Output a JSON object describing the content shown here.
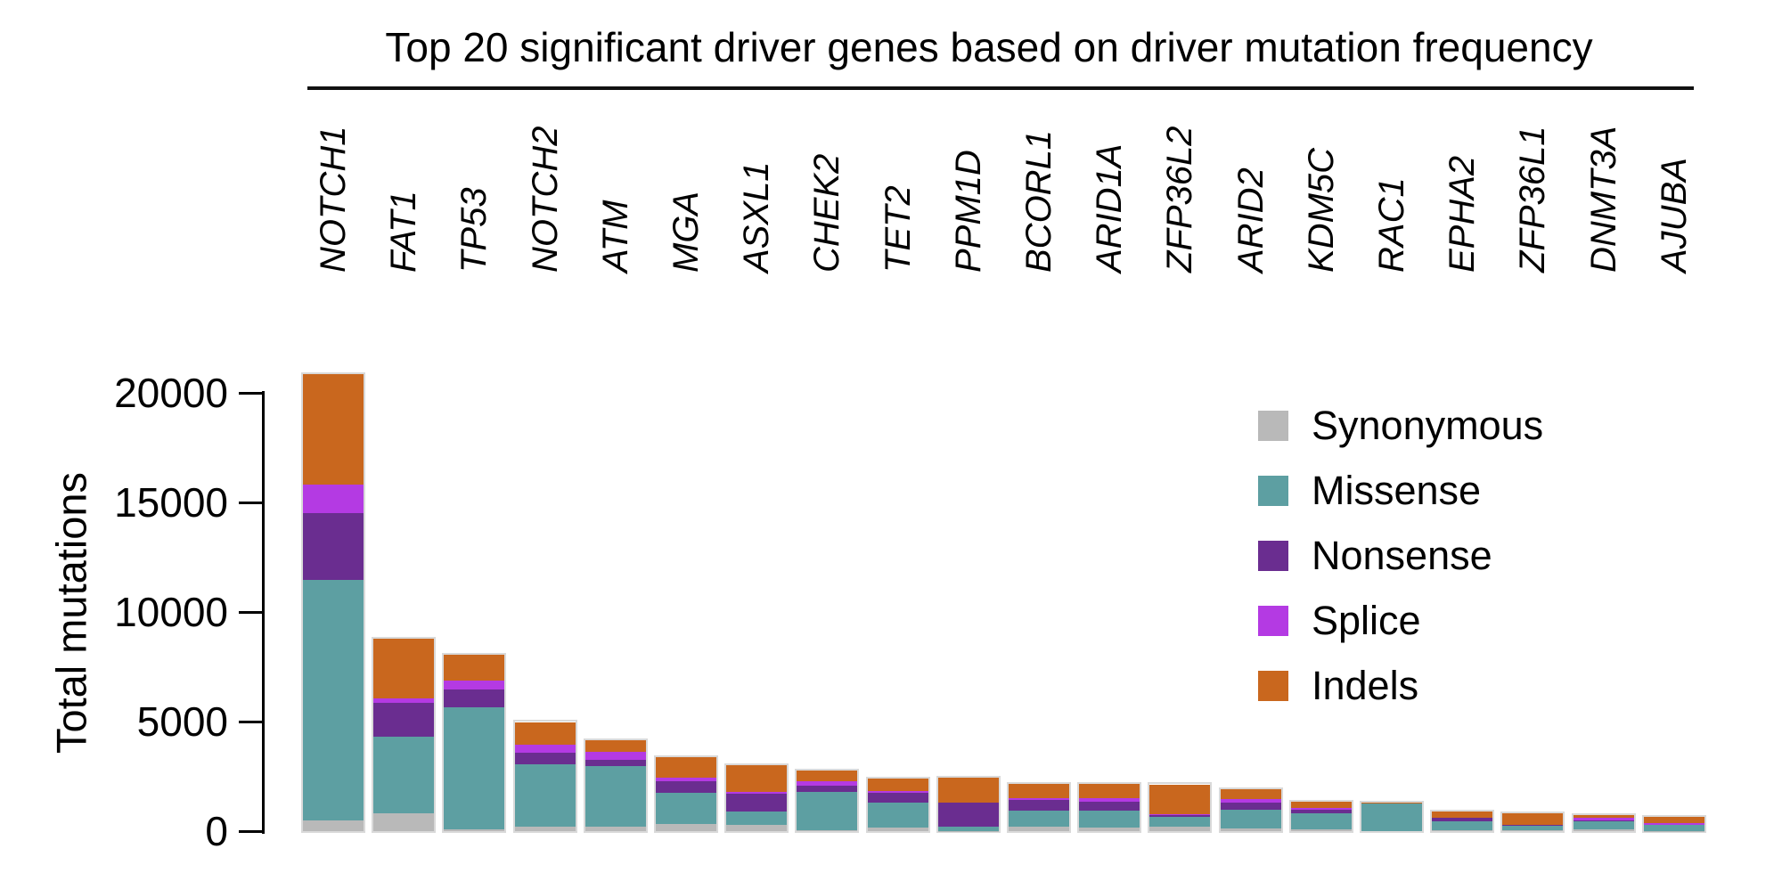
{
  "title": "Top 20 significant driver genes based on driver mutation frequency",
  "y_axis": {
    "label": "Total mutations",
    "tick_labels": [
      "0",
      "5000",
      "10000",
      "15000",
      "20000"
    ]
  },
  "legend": {
    "items": [
      "Synonymous",
      "Missense",
      "Nonsense",
      "Splice",
      "Indels"
    ]
  },
  "chart_data": {
    "type": "bar",
    "stacked": true,
    "title": "Top 20 significant driver genes based on driver mutation frequency",
    "xlabel": "",
    "ylabel": "Total mutations",
    "ylim": [
      0,
      20000
    ],
    "yticks": [
      0,
      5000,
      10000,
      15000,
      20000
    ],
    "grid": false,
    "legend_position": "upper-right-inside",
    "categories": [
      "NOTCH1",
      "FAT1",
      "TP53",
      "NOTCH2",
      "ATM",
      "MGA",
      "ASXL1",
      "CHEK2",
      "TET2",
      "PPM1D",
      "BCORL1",
      "ARID1A",
      "ZFP36L2",
      "ARID2",
      "KDM5C",
      "RAC1",
      "EPHA2",
      "ZFP36L1",
      "DNMT3A",
      "AJUBA"
    ],
    "series": [
      {
        "name": "Synonymous",
        "color": "#b9b9b9",
        "values": [
          480,
          820,
          80,
          210,
          210,
          320,
          300,
          50,
          170,
          20,
          210,
          170,
          210,
          140,
          70,
          0,
          50,
          50,
          70,
          20
        ]
      },
      {
        "name": "Missense",
        "color": "#5d9fa2",
        "values": [
          11000,
          3480,
          5580,
          2850,
          2750,
          1410,
          580,
          1750,
          1150,
          190,
          740,
          780,
          450,
          840,
          750,
          1250,
          410,
          190,
          370,
          260
        ]
      },
      {
        "name": "Nonsense",
        "color": "#6a2d90",
        "values": [
          3050,
          1560,
          790,
          510,
          300,
          560,
          810,
          270,
          410,
          1110,
          480,
          410,
          60,
          340,
          140,
          0,
          140,
          30,
          30,
          0
        ]
      },
      {
        "name": "Splice",
        "color": "#b43ae3",
        "values": [
          1300,
          200,
          410,
          370,
          340,
          160,
          110,
          200,
          110,
          0,
          90,
          130,
          40,
          130,
          110,
          0,
          30,
          0,
          130,
          100
        ]
      },
      {
        "name": "Indels",
        "color": "#c9671e",
        "values": [
          5020,
          2710,
          1190,
          1040,
          540,
          910,
          1220,
          480,
          570,
          1130,
          650,
          650,
          1375,
          480,
          290,
          70,
          250,
          540,
          150,
          270
        ]
      }
    ],
    "totals": [
      20850,
      8770,
      8050,
      4980,
      4140,
      3360,
      3020,
      2750,
      2410,
      2450,
      2170,
      2140,
      2135,
      1930,
      1360,
      1320,
      880,
      810,
      750,
      650
    ]
  }
}
